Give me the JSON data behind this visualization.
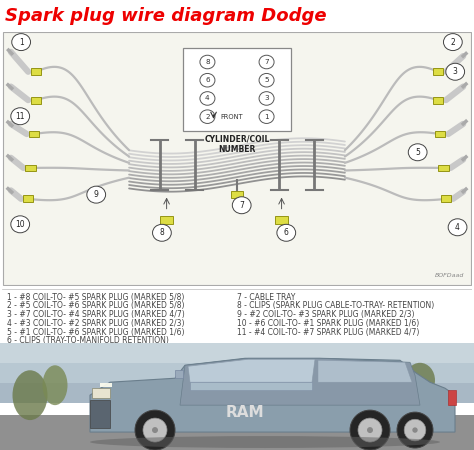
{
  "title": "Spark plug wire diagram Dodge",
  "title_color": "#EE0000",
  "title_fontsize": 13,
  "title_fontweight": "bold",
  "bg_color": "#FFFFFF",
  "diagram_bg": "#F5F5EE",
  "legend_items_left": [
    "1 - #8 COIL-TO- #5 SPARK PLUG (MARKED 5/8)",
    "2 - #5 COIL-TO- #6 SPARK PLUG (MARKED 5/8)",
    "3 - #7 COIL-TO- #4 SPARK PLUG (MARKED 4/7)",
    "4 - #3 COIL-TO- #2 SPARK PLUG (MARKED 2/3)",
    "5 - #1 COIL-TO- #6 SPARK PLUG (MARKED 1/6)",
    "6 - CLIPS (TRAY-TO-MANIFOLD RETENTION)"
  ],
  "legend_items_right": [
    "7 - CABLE TRAY",
    "8 - CLIPS (SPARK PLUG CABLE-TO-TRAY- RETENTION)",
    "9 - #2 COIL-TO- #3 SPARK PLUG (MARKED 2/3)",
    "10 - #6 COIL-TO- #1 SPARK PLUG (MARKED 1/6)",
    "11 - #4 COIL-TO- #7 SPARK PLUG (MARKED 4/7)"
  ],
  "cylinder_label": "CYLINDER/COIL\nNUMBER",
  "connector_color": "#DDDD44",
  "text_color": "#555555",
  "legend_fontsize": 5.5,
  "watermark": "BOFDaad"
}
